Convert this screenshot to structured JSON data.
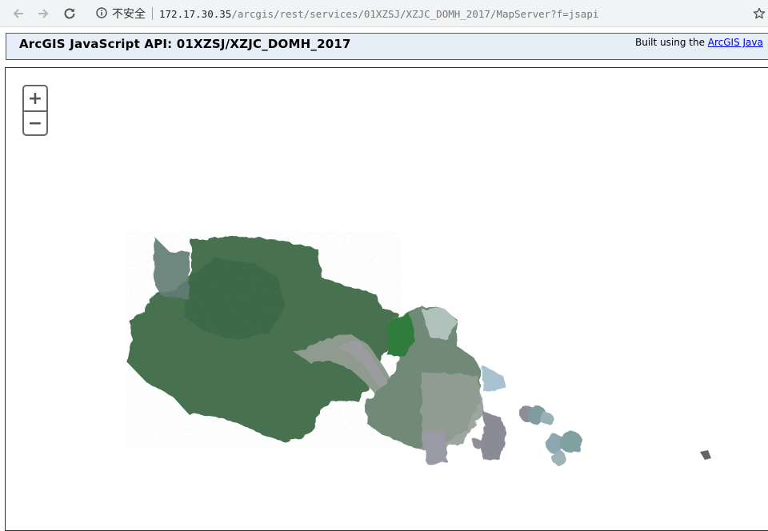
{
  "browser": {
    "security_label": "不安全",
    "url_host": "172.17.30.35",
    "url_path": "/arcgis/rest/services/01XZSJ/XZJC_DOMH_2017/MapServer?f=jsapi",
    "icons": [
      "back-icon",
      "forward-icon",
      "reload-icon",
      "info-icon",
      "star-icon"
    ]
  },
  "header": {
    "title": "ArcGIS JavaScript API: 01XZSJ/XZJC_DOMH_2017",
    "built_prefix": "Built using the ",
    "built_link": "ArcGIS Java"
  },
  "map": {
    "zoom_in_label": "+",
    "zoom_out_label": "−",
    "colors": {
      "forest_dark": "#3f6e4c",
      "forest_mid": "#52805a",
      "urban_gray": "#8d9a90",
      "water_gray": "#9a9aa6",
      "light_blue": "#a9c2d2",
      "green_bright": "#2f7d3b"
    }
  }
}
